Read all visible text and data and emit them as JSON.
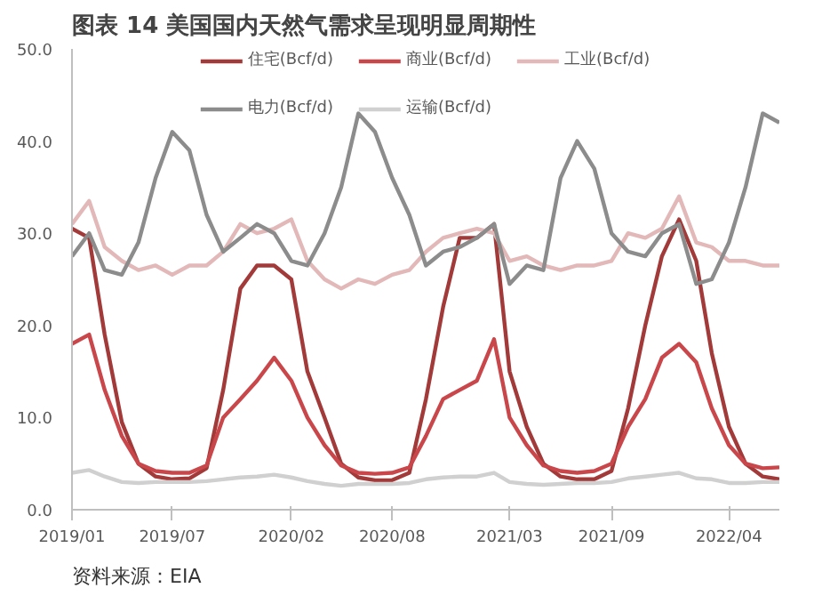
{
  "chart_data": {
    "type": "line",
    "title": "图表 14 美国国内天然气需求呈现明显周期性",
    "annotations": [
      "资料来源：EIA"
    ],
    "x": [
      "2019-01",
      "2019-02",
      "2019-03",
      "2019-04",
      "2019-05",
      "2019-06",
      "2019-07",
      "2019-08",
      "2019-09",
      "2019-10",
      "2019-11",
      "2019-12",
      "2020-01",
      "2020-02",
      "2020-03",
      "2020-04",
      "2020-05",
      "2020-06",
      "2020-07",
      "2020-08",
      "2020-09",
      "2020-10",
      "2020-11",
      "2020-12",
      "2021-01",
      "2021-02",
      "2021-03",
      "2021-04",
      "2021-05",
      "2021-06",
      "2021-07",
      "2021-08",
      "2021-09",
      "2021-10",
      "2021-11",
      "2021-12",
      "2022-01",
      "2022-02",
      "2022-03",
      "2022-04",
      "2022-05",
      "2022-06",
      "2022-07"
    ],
    "series": [
      {
        "name": "住宅(Bcf/d)",
        "color": "#a33a3a",
        "values": [
          30.5,
          29.5,
          19,
          9.5,
          5,
          3.6,
          3.3,
          3.4,
          4.5,
          13,
          24,
          26.5,
          26.5,
          25,
          15,
          10,
          5,
          3.5,
          3.2,
          3.2,
          4,
          12,
          22,
          29.5,
          29.5,
          31,
          15,
          9,
          5,
          3.6,
          3.3,
          3.3,
          4.2,
          11,
          20,
          27.5,
          31.5,
          27,
          17,
          9,
          5,
          3.6,
          3.3
        ]
      },
      {
        "name": "商业(Bcf/d)",
        "color": "#c9474a",
        "values": [
          18,
          19,
          13,
          8,
          5,
          4.2,
          4,
          4,
          4.8,
          10,
          12,
          14,
          16.5,
          14,
          10,
          7,
          4.8,
          4,
          3.9,
          4,
          4.6,
          8,
          12,
          13,
          14,
          18.5,
          10,
          7,
          4.8,
          4.2,
          4,
          4.2,
          5,
          9,
          12,
          16.5,
          18,
          16,
          11,
          7,
          5,
          4.5,
          4.6
        ]
      },
      {
        "name": "工业(Bcf/d)",
        "color": "#e3b8b8",
        "values": [
          31,
          33.5,
          28.5,
          27,
          26,
          26.5,
          25.5,
          26.5,
          26.5,
          28,
          31,
          30,
          30.5,
          31.5,
          27,
          25,
          24,
          25,
          24.5,
          25.5,
          26,
          28,
          29.5,
          30,
          30.5,
          30,
          27,
          27.5,
          26.5,
          26,
          26.5,
          26.5,
          27,
          30,
          29.5,
          30.5,
          34,
          29,
          28.5,
          27,
          27,
          26.5,
          26.5
        ]
      },
      {
        "name": "电力(Bcf/d)",
        "color": "#8c8c8c",
        "values": [
          27.5,
          30,
          26,
          25.5,
          29,
          36,
          41,
          39,
          32,
          28,
          29.5,
          31,
          30,
          27,
          26.5,
          30,
          35,
          43,
          41,
          36,
          32,
          26.5,
          28,
          28.5,
          29.5,
          31,
          24.5,
          26.5,
          26,
          36,
          40,
          37,
          30,
          28,
          27.5,
          30,
          31,
          24.5,
          25,
          29,
          35,
          43,
          42
        ]
      },
      {
        "name": "运输(Bcf/d)",
        "color": "#d0d0d0",
        "values": [
          4,
          4.3,
          3.6,
          3,
          2.9,
          3,
          3,
          3,
          3.1,
          3.3,
          3.5,
          3.6,
          3.8,
          3.5,
          3.1,
          2.8,
          2.6,
          2.8,
          2.8,
          2.8,
          2.9,
          3.3,
          3.5,
          3.6,
          3.6,
          4,
          3,
          2.8,
          2.7,
          2.8,
          2.9,
          2.9,
          3,
          3.4,
          3.6,
          3.8,
          4,
          3.4,
          3.3,
          2.9,
          2.9,
          3,
          3
        ]
      }
    ],
    "xlim": [
      "2019-01",
      "2022-07"
    ],
    "xticks": [
      {
        "value": "2019-01",
        "label": "2019/01"
      },
      {
        "value": "2019-07",
        "label": "2019/07"
      },
      {
        "value": "2020-02",
        "label": "2020/02"
      },
      {
        "value": "2020-08",
        "label": "2020/08"
      },
      {
        "value": "2021-03",
        "label": "2021/03"
      },
      {
        "value": "2021-09",
        "label": "2021/09"
      },
      {
        "value": "2022-04",
        "label": "2022/04"
      }
    ],
    "ylim": [
      0,
      50
    ],
    "yticks": [
      {
        "value": 0,
        "label": "0.0"
      },
      {
        "value": 10,
        "label": "10.0"
      },
      {
        "value": 20,
        "label": "20.0"
      },
      {
        "value": 30,
        "label": "30.0"
      },
      {
        "value": 40,
        "label": "40.0"
      },
      {
        "value": 50,
        "label": "50.0"
      }
    ],
    "grid": false,
    "legend": "top",
    "line_style": "solid"
  }
}
